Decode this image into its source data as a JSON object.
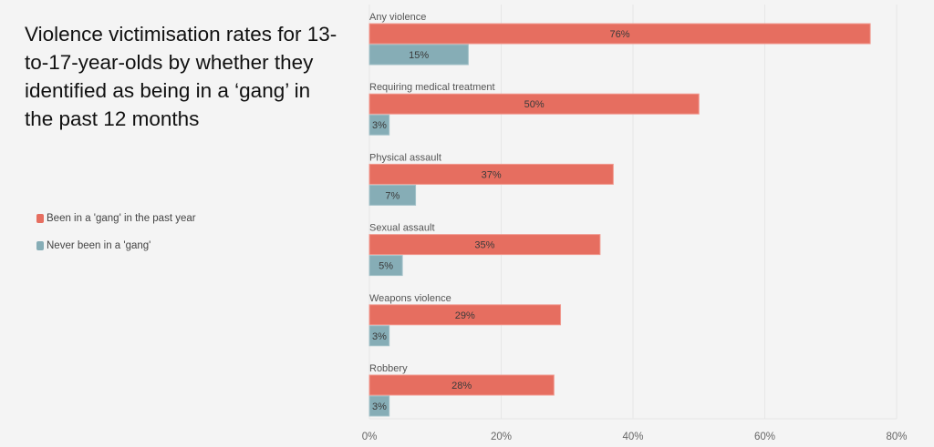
{
  "chart_data": {
    "type": "bar",
    "orientation": "horizontal",
    "title": "Violence victimisation rates for 13-to-17-year-olds by whether they identified as being in a ‘gang’ in the past 12 months",
    "categories": [
      "Any violence",
      "Requiring medical treatment",
      "Physical assault",
      "Sexual assault",
      "Weapons violence",
      "Robbery"
    ],
    "series": [
      {
        "name": "Been in a 'gang' in the past year",
        "color": "#e66e60",
        "values": [
          76,
          50,
          37,
          35,
          29,
          28
        ],
        "labels": [
          "76%",
          "50%",
          "37%",
          "35%",
          "29%",
          "28%"
        ]
      },
      {
        "name": "Never been in a 'gang'",
        "color": "#86adb6",
        "values": [
          15,
          3,
          7,
          5,
          3,
          3
        ],
        "labels": [
          "15%",
          "3%",
          "7%",
          "5%",
          "3%",
          "3%"
        ]
      }
    ],
    "xlabel": "",
    "ylabel": "",
    "xlim": [
      0,
      80
    ],
    "xticks": [
      0,
      20,
      40,
      60,
      80
    ],
    "xtick_labels": [
      "0%",
      "20%",
      "40%",
      "60%",
      "80%"
    ],
    "grid": true,
    "legend_position": "left"
  }
}
